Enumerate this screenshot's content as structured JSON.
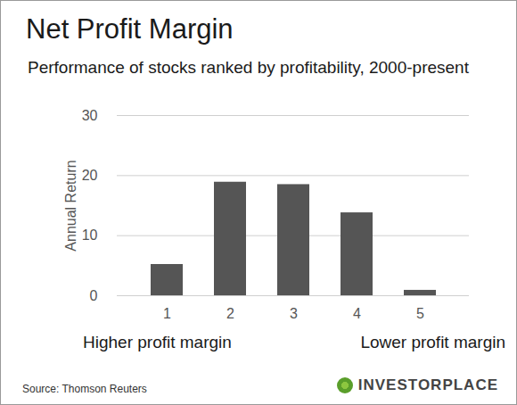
{
  "chart_data": {
    "type": "bar",
    "title": "Net Profit Margin",
    "subtitle": "Performance of stocks ranked by profitability, 2000-present",
    "y_label": "Annual Return",
    "categories": [
      "1",
      "2",
      "3",
      "4",
      "5"
    ],
    "values": [
      5.2,
      18.9,
      18.5,
      13.8,
      0.9
    ],
    "color": "#555555",
    "ylim": [
      0,
      30
    ],
    "yticks": [
      0,
      10,
      20,
      30
    ],
    "grid": true,
    "annotations": [
      "Higher profit margin",
      "Lower profit margin"
    ],
    "source": "Source: Thomson Reuters",
    "logo": "INVESTORPLACE"
  }
}
